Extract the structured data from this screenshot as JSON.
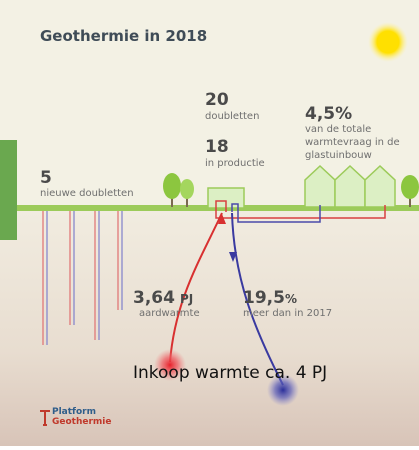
{
  "header": {
    "title": "Geothermie in 2018"
  },
  "stats": {
    "doubletten": {
      "value": "20",
      "label": "doubletten"
    },
    "productie": {
      "value": "18",
      "label": "in productie"
    },
    "glastuinbouw": {
      "value": "4,5%",
      "lines": [
        "van de totale",
        "warmtevraag in de",
        "glastuinbouw"
      ]
    },
    "nieuw": {
      "value": "5",
      "label": "nieuwe doubletten"
    },
    "aardwarmte": {
      "value": "3,64",
      "unit": "PJ",
      "label": "aardwarmte"
    },
    "groei": {
      "value": "19,5",
      "unit": "%",
      "label": "meer dan in 2017"
    }
  },
  "annotation": "Inkoop warmte ca. 4 PJ",
  "logo": {
    "lines": [
      "Platform",
      "Geothermie"
    ]
  }
}
